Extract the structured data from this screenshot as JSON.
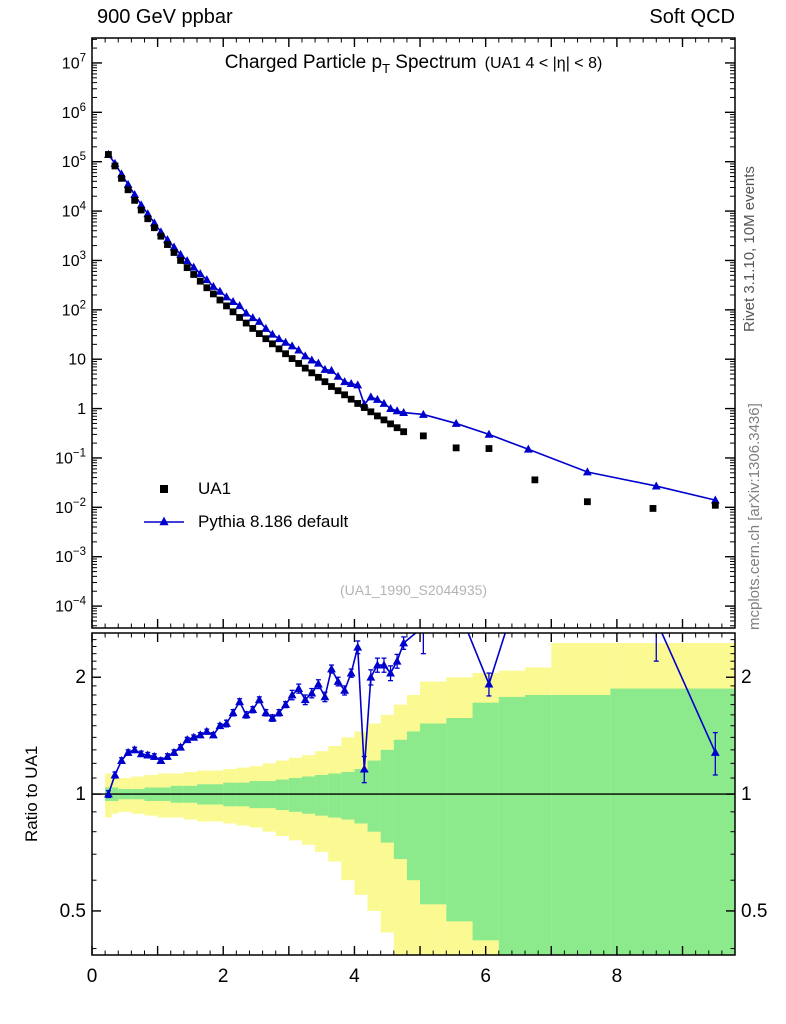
{
  "header": {
    "left": "900 GeV ppbar",
    "right": "Soft QCD"
  },
  "side_labels": {
    "right_top": "Rivet 3.1.10,  10M events",
    "right_bottom": "mcplots.cern.ch [arXiv:1306.3436]"
  },
  "main_panel": {
    "title": {
      "prefix": "Charged Particle p",
      "sub": "T",
      "suffix": " Spectrum",
      "paren": "(UA1   4 < |η| < 8)"
    },
    "watermark": "(UA1_1990_S2044935)"
  },
  "legend": {
    "items": [
      {
        "label": "UA1",
        "marker": "square",
        "color": "#000000"
      },
      {
        "label": "Pythia 8.186 default",
        "marker": "triangle-line",
        "color": "#0000cc"
      }
    ]
  },
  "ratio_panel": {
    "ylabel": "Ratio to UA1"
  },
  "colors": {
    "pythia_blue": "#0000cc",
    "marker_black": "#000000",
    "band_yellow": "#fbfa92",
    "band_green": "#8ce98c",
    "watermark_gray": "#b4b4b4"
  },
  "chart_data": [
    {
      "type": "scatter",
      "title": "Charged Particle pT Spectrum (UA1, 4 < |η| < 8)",
      "xlim": [
        0,
        9.8
      ],
      "ylog": true,
      "ylim": [
        3.6e-05,
        32000000.0
      ],
      "xticks_labeled": [
        0,
        2,
        4,
        6,
        8
      ],
      "xtick_major_step": 1,
      "xtick_minor_step": 0.2,
      "ytick_exponent_min": -4,
      "ytick_exponent_max": 7,
      "legend_position": "left-middle",
      "grid": false,
      "series": [
        {
          "name": "UA1",
          "marker": "square",
          "color": "#000000",
          "line": false,
          "x": [
            0.25,
            0.35,
            0.45,
            0.55,
            0.65,
            0.75,
            0.85,
            0.95,
            1.05,
            1.15,
            1.25,
            1.35,
            1.45,
            1.55,
            1.65,
            1.75,
            1.85,
            1.95,
            2.05,
            2.15,
            2.25,
            2.35,
            2.45,
            2.55,
            2.65,
            2.75,
            2.85,
            2.95,
            3.05,
            3.15,
            3.25,
            3.35,
            3.45,
            3.55,
            3.65,
            3.75,
            3.85,
            3.95,
            4.05,
            4.15,
            4.25,
            4.35,
            4.45,
            4.55,
            4.65,
            4.75,
            5.05,
            5.55,
            6.05,
            6.75,
            7.55,
            8.55,
            9.5
          ],
          "y": [
            140000,
            82000,
            46000,
            27000,
            16500,
            10500,
            7000,
            4600,
            3100,
            2100,
            1450,
            1000,
            715,
            520,
            380,
            280,
            210,
            158,
            120,
            91,
            70,
            54,
            42,
            33,
            26,
            20.5,
            16.2,
            12.9,
            10.3,
            8.2,
            6.6,
            5.3,
            4.3,
            3.5,
            2.8,
            2.3,
            1.9,
            1.55,
            1.27,
            1.05,
            0.86,
            0.71,
            0.59,
            0.49,
            0.41,
            0.34,
            0.28,
            0.16,
            0.155,
            0.036,
            0.013,
            0.0095,
            0.011
          ]
        },
        {
          "name": "Pythia 8.186 default",
          "marker": "triangle",
          "color": "#0000cc",
          "line": true,
          "x": [
            0.25,
            0.35,
            0.45,
            0.55,
            0.65,
            0.75,
            0.85,
            0.95,
            1.05,
            1.15,
            1.25,
            1.35,
            1.45,
            1.55,
            1.65,
            1.75,
            1.85,
            1.95,
            2.05,
            2.15,
            2.25,
            2.35,
            2.45,
            2.55,
            2.65,
            2.75,
            2.85,
            2.95,
            3.05,
            3.15,
            3.25,
            3.35,
            3.45,
            3.55,
            3.65,
            3.75,
            3.85,
            3.95,
            4.05,
            4.15,
            4.25,
            4.35,
            4.45,
            4.55,
            4.65,
            4.75,
            5.05,
            5.55,
            6.05,
            6.65,
            7.55,
            8.6,
            9.5
          ],
          "y": [
            140000,
            92000,
            56000,
            34600,
            21500,
            13300,
            8800,
            5750,
            3780,
            2630,
            1860,
            1320,
            990,
            730,
            540,
            406,
            298,
            237,
            182,
            147,
            121,
            86,
            69,
            58,
            42,
            32,
            26,
            22,
            18.5,
            15.3,
            11.6,
            9.6,
            8.3,
            6.2,
            5.9,
            4.5,
            3.5,
            3.2,
            3.0,
            1.22,
            1.72,
            1.53,
            1.27,
            1.0,
            0.9,
            0.83,
            0.76,
            0.5,
            0.3,
            0.15,
            0.052,
            0.027,
            0.014
          ]
        }
      ]
    },
    {
      "type": "line",
      "title": "Ratio to UA1",
      "xlim": [
        0,
        9.8
      ],
      "ylog": true,
      "ylim": [
        0.385,
        2.6
      ],
      "yticks": [
        0.5,
        1,
        2
      ],
      "yticks_minor": [
        0.4,
        0.6,
        0.7,
        0.8,
        0.9,
        1.1,
        1.2,
        1.3,
        1.4,
        1.5,
        1.6,
        1.7,
        1.8,
        1.9,
        2.1,
        2.2,
        2.3,
        2.4,
        2.5
      ],
      "reference_line": 1,
      "bands": {
        "edges": [
          0.2,
          0.3,
          0.4,
          0.6,
          0.8,
          1.0,
          1.2,
          1.4,
          1.6,
          1.8,
          2.0,
          2.2,
          2.4,
          2.6,
          2.8,
          3.0,
          3.2,
          3.4,
          3.6,
          3.8,
          4.0,
          4.2,
          4.4,
          4.6,
          4.8,
          5.0,
          5.4,
          5.8,
          6.2,
          6.6,
          7.0,
          7.9,
          9.8
        ],
        "yellow_lo": [
          0.87,
          0.89,
          0.9,
          0.89,
          0.88,
          0.87,
          0.87,
          0.86,
          0.85,
          0.85,
          0.84,
          0.83,
          0.82,
          0.8,
          0.78,
          0.76,
          0.74,
          0.71,
          0.67,
          0.6,
          0.55,
          0.5,
          0.44,
          0.38,
          0.33,
          0.3,
          0.28,
          0.28,
          0.28,
          0.28,
          0.26,
          0.26
        ],
        "yellow_hi": [
          1.13,
          1.11,
          1.1,
          1.11,
          1.12,
          1.13,
          1.13,
          1.14,
          1.15,
          1.15,
          1.16,
          1.17,
          1.18,
          1.2,
          1.22,
          1.24,
          1.26,
          1.29,
          1.33,
          1.4,
          1.45,
          1.52,
          1.6,
          1.7,
          1.8,
          1.95,
          2.0,
          2.05,
          2.08,
          2.12,
          2.45,
          2.45
        ],
        "green_lo": [
          0.96,
          0.96,
          0.97,
          0.97,
          0.96,
          0.96,
          0.95,
          0.95,
          0.94,
          0.94,
          0.93,
          0.93,
          0.92,
          0.92,
          0.91,
          0.9,
          0.89,
          0.88,
          0.87,
          0.86,
          0.84,
          0.8,
          0.75,
          0.68,
          0.6,
          0.52,
          0.47,
          0.42,
          0.38,
          0.33,
          0.3,
          0.28
        ],
        "green_hi": [
          1.04,
          1.04,
          1.03,
          1.03,
          1.04,
          1.04,
          1.05,
          1.05,
          1.06,
          1.06,
          1.07,
          1.07,
          1.08,
          1.08,
          1.09,
          1.1,
          1.11,
          1.12,
          1.13,
          1.14,
          1.16,
          1.22,
          1.3,
          1.38,
          1.45,
          1.52,
          1.57,
          1.72,
          1.78,
          1.8,
          1.8,
          1.87
        ]
      },
      "series": [
        {
          "name": "Pythia 8.186 default / UA1",
          "color": "#0000cc",
          "x": [
            0.25,
            0.35,
            0.45,
            0.55,
            0.65,
            0.75,
            0.85,
            0.95,
            1.05,
            1.15,
            1.25,
            1.35,
            1.45,
            1.55,
            1.65,
            1.75,
            1.85,
            1.95,
            2.05,
            2.15,
            2.25,
            2.35,
            2.45,
            2.55,
            2.65,
            2.75,
            2.85,
            2.95,
            3.05,
            3.15,
            3.25,
            3.35,
            3.45,
            3.55,
            3.65,
            3.75,
            3.85,
            3.95,
            4.05,
            4.15,
            4.25,
            4.35,
            4.45,
            4.55,
            4.65,
            4.75,
            5.05,
            5.55,
            6.05,
            6.65,
            7.55,
            8.6,
            9.5
          ],
          "y": [
            1.0,
            1.12,
            1.22,
            1.28,
            1.3,
            1.27,
            1.26,
            1.25,
            1.22,
            1.25,
            1.28,
            1.32,
            1.38,
            1.4,
            1.42,
            1.45,
            1.42,
            1.5,
            1.52,
            1.62,
            1.73,
            1.6,
            1.65,
            1.75,
            1.62,
            1.57,
            1.62,
            1.7,
            1.8,
            1.87,
            1.75,
            1.82,
            1.92,
            1.78,
            2.1,
            1.95,
            1.85,
            2.05,
            2.39,
            1.16,
            2.0,
            2.15,
            2.15,
            2.05,
            2.2,
            2.45,
            2.7,
            3.1,
            1.92,
            4.0,
            4.0,
            2.8,
            1.28
          ],
          "yerr": [
            0.02,
            0.02,
            0.02,
            0.02,
            0.02,
            0.02,
            0.02,
            0.02,
            0.02,
            0.02,
            0.02,
            0.02,
            0.02,
            0.02,
            0.02,
            0.02,
            0.02,
            0.02,
            0.03,
            0.03,
            0.03,
            0.03,
            0.03,
            0.03,
            0.03,
            0.03,
            0.03,
            0.03,
            0.05,
            0.05,
            0.05,
            0.05,
            0.05,
            0.05,
            0.05,
            0.05,
            0.05,
            0.05,
            0.09,
            0.09,
            0.09,
            0.09,
            0.09,
            0.09,
            0.09,
            0.09,
            0.4,
            0.5,
            0.13,
            0.9,
            0.9,
            0.6,
            0.16
          ]
        }
      ]
    }
  ]
}
